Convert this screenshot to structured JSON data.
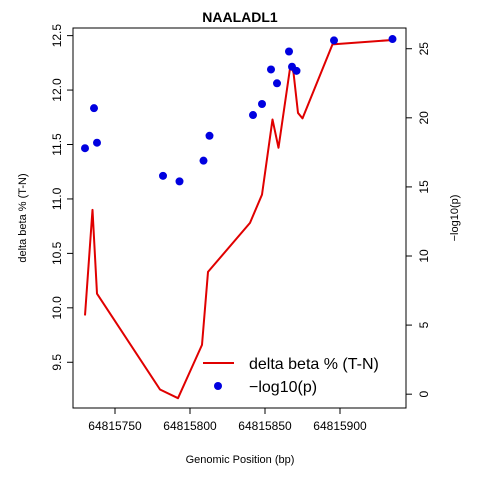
{
  "chart_data": {
    "type": "line",
    "title": "NAALADL1",
    "xlabel": "Genomic Position (bp)",
    "ylabel_left": "delta beta % (T-N)",
    "ylabel_right": "−log10(p)",
    "xlim": [
      64815722,
      64815944
    ],
    "ylim_left": [
      9.08,
      12.57
    ],
    "ylim_right": [
      -1,
      26.5
    ],
    "x_ticks": [
      64815750,
      64815800,
      64815850,
      64815900
    ],
    "y_ticks_left": [
      9.5,
      10.0,
      10.5,
      11.0,
      11.5,
      12.0,
      12.5
    ],
    "y_ticks_right": [
      0,
      5,
      10,
      15,
      20,
      25
    ],
    "grid": false,
    "legend_position": "bottom-right",
    "series": [
      {
        "name": "delta beta % (T-N)",
        "type": "line",
        "axis": "left",
        "color": "#e00000",
        "x": [
          64815730,
          64815735,
          64815738,
          64815780,
          64815792,
          64815808,
          64815812,
          64815840,
          64815848,
          64815855,
          64815859,
          64815867,
          64815869,
          64815872,
          64815875,
          64815895,
          64815935
        ],
        "y": [
          9.93,
          10.9,
          10.13,
          9.25,
          9.17,
          9.66,
          10.33,
          10.78,
          11.04,
          11.73,
          11.47,
          12.23,
          12.16,
          11.79,
          11.74,
          12.42,
          12.46
        ]
      },
      {
        "name": "−log10(p)",
        "type": "scatter",
        "axis": "right",
        "color": "#0000e0",
        "x": [
          64815730,
          64815736,
          64815738,
          64815782,
          64815793,
          64815809,
          64815813,
          64815842,
          64815848,
          64815854,
          64815858,
          64815866,
          64815868,
          64815871,
          64815896,
          64815935
        ],
        "y": [
          17.8,
          20.7,
          18.2,
          15.8,
          15.4,
          16.9,
          18.7,
          20.2,
          21.0,
          23.5,
          22.5,
          24.8,
          23.7,
          23.4,
          25.6,
          25.7
        ]
      }
    ]
  }
}
